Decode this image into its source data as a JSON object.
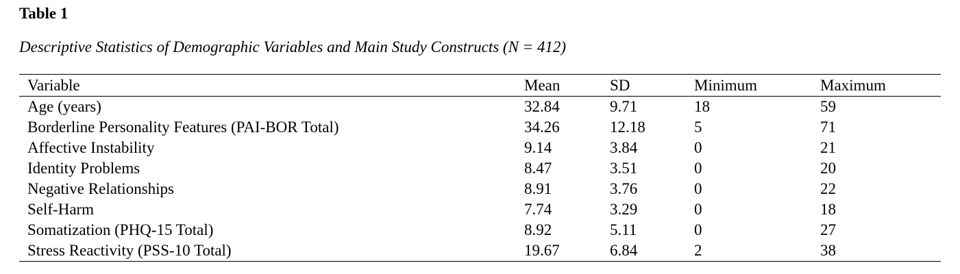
{
  "page": {
    "background_color": "#ffffff",
    "text_color": "#000000"
  },
  "table": {
    "label": "Table 1",
    "caption": "Descriptive Statistics of Demographic Variables and Main Study Constructs (N = 412)",
    "columns": [
      "Variable",
      "Mean",
      "SD",
      "Minimum",
      "Maximum"
    ],
    "rows": [
      [
        "Age (years)",
        "32.84",
        "9.71",
        "18",
        "59"
      ],
      [
        "Borderline Personality Features (PAI-BOR Total)",
        "34.26",
        "12.18",
        "5",
        "71"
      ],
      [
        "Affective Instability",
        "9.14",
        "3.84",
        "0",
        "21"
      ],
      [
        "Identity Problems",
        "8.47",
        "3.51",
        "0",
        "20"
      ],
      [
        "Negative Relationships",
        "8.91",
        "3.76",
        "0",
        "22"
      ],
      [
        "Self-Harm",
        "7.74",
        "3.29",
        "0",
        "18"
      ],
      [
        "Somatization (PHQ-15 Total)",
        "8.92",
        "5.11",
        "0",
        "27"
      ],
      [
        "Stress Reactivity (PSS-10 Total)",
        "19.67",
        "6.84",
        "2",
        "38"
      ]
    ]
  },
  "chart_data": {
    "type": "table",
    "title": "Descriptive Statistics of Demographic Variables and Main Study Constructs (N = 412)",
    "columns": [
      "Variable",
      "Mean",
      "SD",
      "Minimum",
      "Maximum"
    ],
    "rows": [
      {
        "variable": "Age (years)",
        "mean": 32.84,
        "sd": 9.71,
        "minimum": 18,
        "maximum": 59
      },
      {
        "variable": "Borderline Personality Features (PAI-BOR Total)",
        "mean": 34.26,
        "sd": 12.18,
        "minimum": 5,
        "maximum": 71
      },
      {
        "variable": "Affective Instability",
        "mean": 9.14,
        "sd": 3.84,
        "minimum": 0,
        "maximum": 21
      },
      {
        "variable": "Identity Problems",
        "mean": 8.47,
        "sd": 3.51,
        "minimum": 0,
        "maximum": 20
      },
      {
        "variable": "Negative Relationships",
        "mean": 8.91,
        "sd": 3.76,
        "minimum": 0,
        "maximum": 22
      },
      {
        "variable": "Self-Harm",
        "mean": 7.74,
        "sd": 3.29,
        "minimum": 0,
        "maximum": 18
      },
      {
        "variable": "Somatization (PHQ-15 Total)",
        "mean": 8.92,
        "sd": 5.11,
        "minimum": 0,
        "maximum": 27
      },
      {
        "variable": "Stress Reactivity (PSS-10 Total)",
        "mean": 19.67,
        "sd": 6.84,
        "minimum": 2,
        "maximum": 38
      }
    ]
  }
}
